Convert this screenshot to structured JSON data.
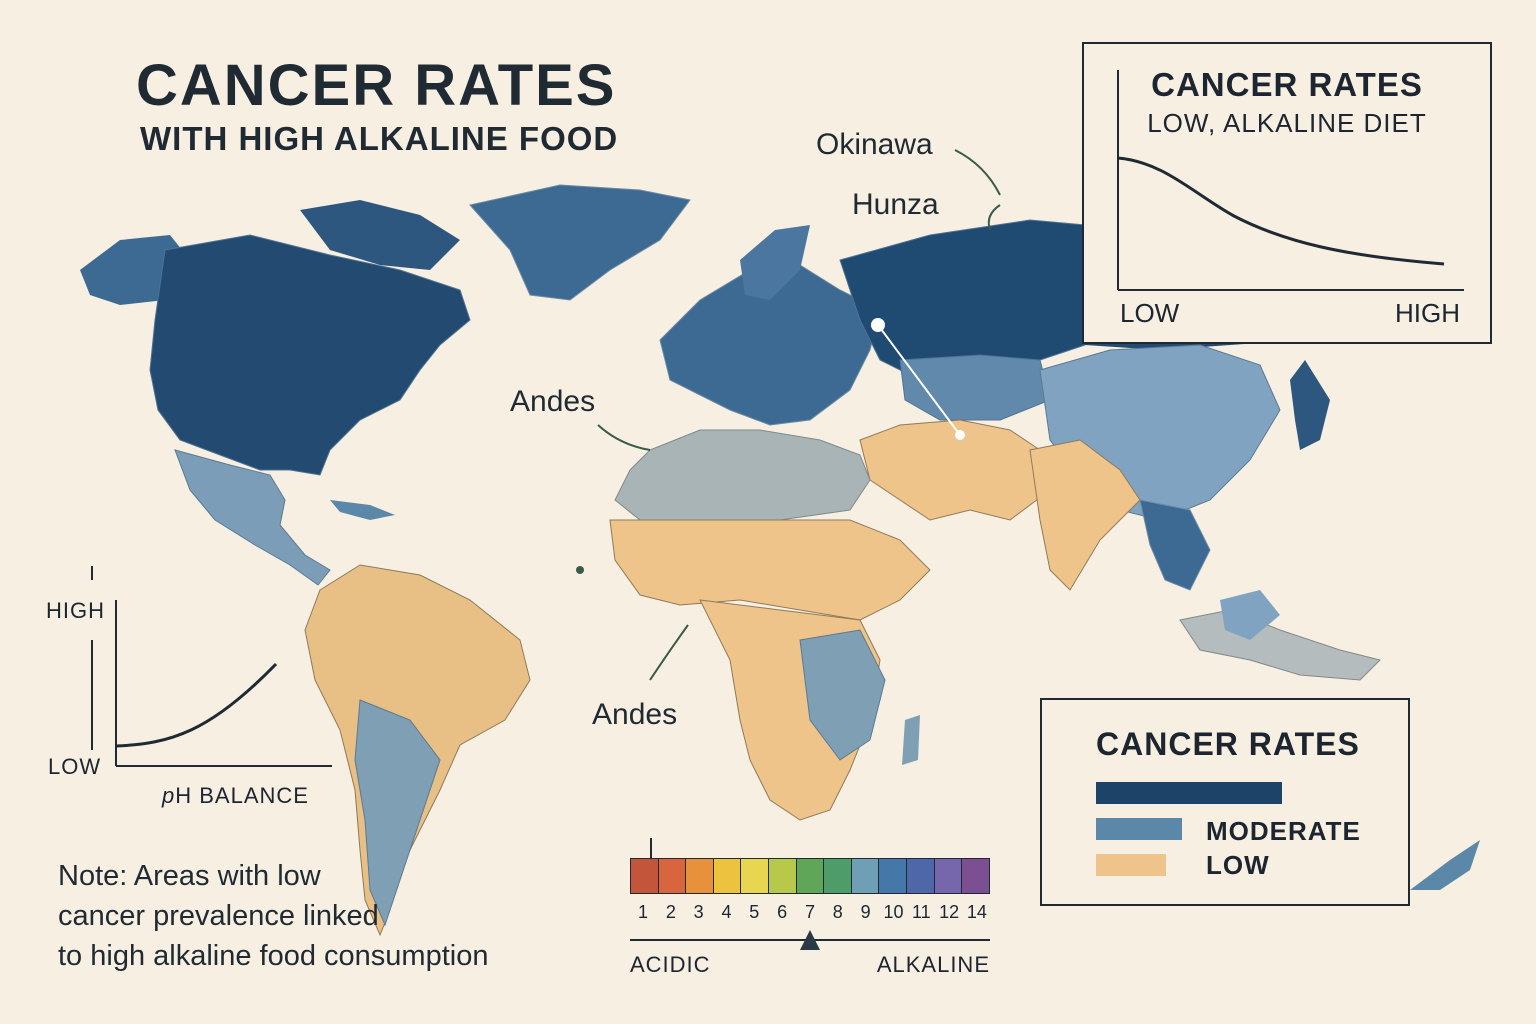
{
  "title": "CANCER RATES",
  "subtitle": "WITH HIGH ALKALINE FOOD",
  "places": {
    "okinawa": "Okinawa",
    "hunza": "Hunza",
    "andes_north": "Andes",
    "andes_south": "Andes"
  },
  "inset": {
    "title": "CANCER RATES",
    "subtitle": "LOW, ALKALINE DIET",
    "x_low": "LOW",
    "x_high": "HIGH"
  },
  "ph_chart": {
    "y_high": "HIGH",
    "y_low": "LOW",
    "xlabel_italic": "p",
    "xlabel": "H BALANCE"
  },
  "legend": {
    "title": "CANCER RATES",
    "items": [
      {
        "label": "",
        "color": "#1d4468"
      },
      {
        "label": "MODERATE",
        "color": "#5b87a8"
      },
      {
        "label": "LOW",
        "color": "#efc48a"
      }
    ]
  },
  "note": [
    "Note: Areas with low",
    "cancer prevalence linked",
    "to high alkaline food consumption"
  ],
  "ph_scale": {
    "numbers": [
      "1",
      "2",
      "3",
      "4",
      "5",
      "6",
      "7",
      "8",
      "9",
      "10",
      "11",
      "12",
      "14"
    ],
    "colors": [
      "#c2553a",
      "#d9653f",
      "#e7913c",
      "#ecc23f",
      "#e9d650",
      "#b7c84b",
      "#5fa659",
      "#4e9c6a",
      "#6f9fb4",
      "#4577a8",
      "#4d67a8",
      "#7667ac",
      "#7c4f92"
    ],
    "left_label": "ACIDIC",
    "right_label": "ALKALINE",
    "marker_value": 7
  },
  "colors": {
    "high": "#1d4468",
    "moderate": "#5b87a8",
    "low": "#efc48a",
    "neutral": "#a7b0b2",
    "background": "#f6efe2",
    "ink": "#1f2a33"
  }
}
